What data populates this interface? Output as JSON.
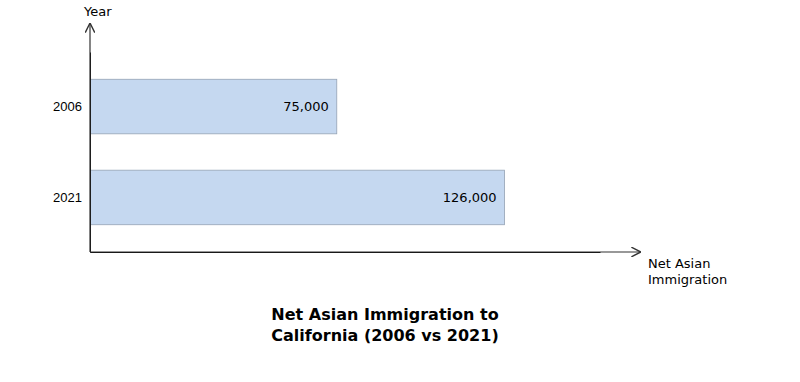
{
  "chart_data": {
    "type": "bar",
    "orientation": "horizontal",
    "title": "Net Asian Immigration to\nCalifornia (2006 vs 2021)",
    "x_label": "Net Asian\nImmigration",
    "y_label": "Year",
    "categories": [
      "2021",
      "2006"
    ],
    "values": [
      126000,
      75000
    ],
    "value_labels": [
      "126,000",
      "75,000"
    ],
    "data_labels": true,
    "color": "#c5d8f0",
    "xlim": [
      0,
      155000
    ],
    "tick_labels": "y",
    "grid": false
  }
}
